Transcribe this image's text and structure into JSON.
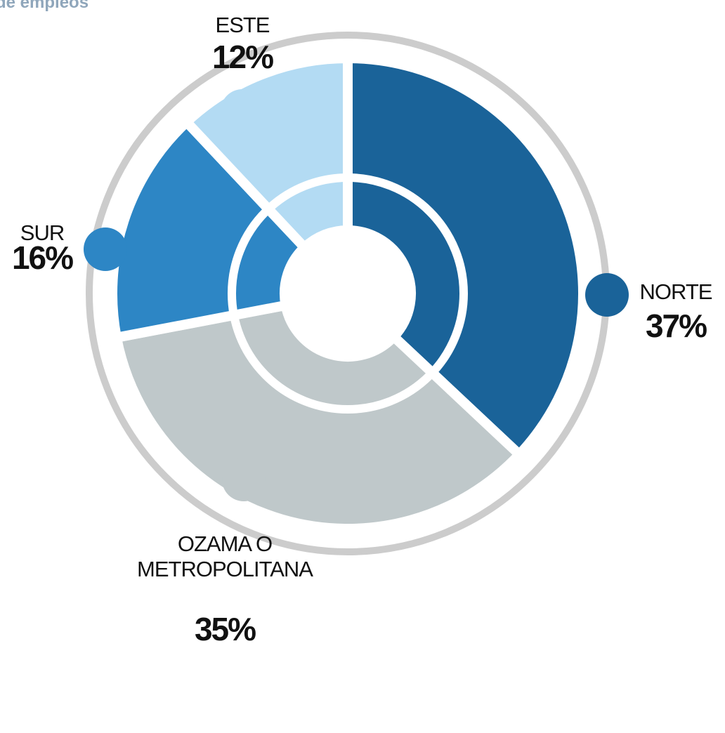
{
  "chart_data": {
    "type": "donut",
    "title": "de empleos",
    "categories": [
      "NORTE",
      "OZAMA O METROPOLITANA",
      "SUR",
      "ESTE"
    ],
    "values": [
      37,
      35,
      16,
      12
    ],
    "value_labels": [
      "37%",
      "35%",
      "16%",
      "12%"
    ],
    "colors": [
      "#1a6399",
      "#bfc8ca",
      "#2d86c5",
      "#b3dbf3"
    ]
  }
}
